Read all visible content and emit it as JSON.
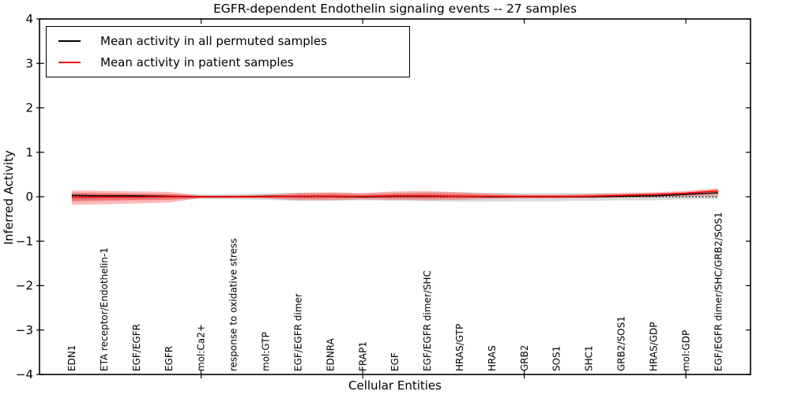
{
  "title": "EGFR-dependent Endothelin signaling events -- 27 samples",
  "legend": {
    "items": [
      {
        "label": "Mean activity in all permuted samples",
        "color": "#000000"
      },
      {
        "label": "Mean activity in patient samples",
        "color": "#ff0000"
      }
    ]
  },
  "colors": {
    "permuted_line": "#000000",
    "patient_line": "#ff0000",
    "patient_band": "#ff0000",
    "permuted_band": "#999999",
    "frame": "#000000",
    "background": "#ffffff"
  },
  "chart_data": {
    "type": "line",
    "title": "EGFR-dependent Endothelin signaling events -- 27 samples",
    "xlabel": "Cellular Entities",
    "ylabel": "Inferred Activity",
    "ylim": [
      -4,
      4
    ],
    "yticks": [
      -4,
      -3,
      -2,
      -1,
      0,
      1,
      2,
      3,
      4
    ],
    "xlim": [
      0,
      22
    ],
    "xticks": [
      5,
      10,
      15,
      20
    ],
    "x": [
      1,
      2,
      3,
      4,
      5,
      6,
      7,
      8,
      9,
      10,
      11,
      12,
      13,
      14,
      15,
      16,
      17,
      18,
      19,
      20,
      21
    ],
    "categories": [
      "EDN1",
      "ETA receptor/Endothelin-1",
      "EGF/EGFR",
      "EGFR",
      "mol:Ca2+",
      "response to oxidative stress",
      "mol:GTP",
      "EGF/EGFR dimer",
      "EDNRA",
      "FRAP1",
      "EGF",
      "EGF/EGFR dimer/SHC",
      "HRAS/GTP",
      "HRAS",
      "GRB2",
      "SOS1",
      "SHC1",
      "GRB2/SOS1",
      "HRAS/GDP",
      "mol:GDP",
      "EGF/EGFR dimer/SHC/GRB2/SOS1"
    ],
    "series": [
      {
        "name": "Mean activity in all permuted samples",
        "color": "#000000",
        "values": [
          0.03,
          0.02,
          0.02,
          0.01,
          0,
          0,
          0.01,
          0.01,
          0.01,
          0,
          0.01,
          0.01,
          0.01,
          0,
          0,
          0,
          0,
          0.01,
          0.02,
          0.05,
          0.09
        ]
      },
      {
        "name": "Mean activity in patient samples",
        "color": "#ff0000",
        "values": [
          -0.01,
          -0.01,
          -0.01,
          0,
          0,
          0,
          0,
          0.01,
          0.01,
          0.01,
          0.02,
          0.02,
          0.01,
          0.01,
          0,
          0,
          0.01,
          0.03,
          0.05,
          0.08,
          0.13
        ]
      }
    ],
    "bands": [
      {
        "name": "permuted-spread",
        "color": "#999999",
        "opacity": 0.35,
        "upper": [
          0.08,
          0.08,
          0.07,
          0.06,
          0.05,
          0.06,
          0.07,
          0.09,
          0.09,
          0.08,
          0.09,
          0.1,
          0.1,
          0.09,
          0.08,
          0.08,
          0.08,
          0.08,
          0.08,
          0.08,
          0.09
        ],
        "lower": [
          -0.08,
          -0.08,
          -0.07,
          -0.06,
          -0.05,
          -0.06,
          -0.07,
          -0.09,
          -0.09,
          -0.08,
          -0.09,
          -0.1,
          -0.11,
          -0.11,
          -0.1,
          -0.1,
          -0.09,
          -0.08,
          -0.08,
          -0.06,
          -0.05
        ]
      },
      {
        "name": "patient-spread-outer",
        "color": "#ff0000",
        "opacity": 0.28,
        "upper": [
          0.14,
          0.13,
          0.12,
          0.11,
          0.03,
          0.03,
          0.05,
          0.09,
          0.1,
          0.08,
          0.12,
          0.13,
          0.1,
          0.07,
          0.05,
          0.05,
          0.06,
          0.08,
          0.1,
          0.13,
          0.19
        ],
        "lower": [
          -0.18,
          -0.17,
          -0.15,
          -0.13,
          -0.03,
          -0.03,
          -0.04,
          -0.08,
          -0.08,
          -0.06,
          -0.07,
          -0.08,
          -0.07,
          -0.05,
          -0.04,
          -0.04,
          -0.03,
          -0.02,
          -0.01,
          0.01,
          0.02
        ]
      },
      {
        "name": "patient-spread-inner",
        "color": "#ff0000",
        "opacity": 0.28,
        "upper": [
          0.09,
          0.08,
          0.07,
          0.06,
          0.01,
          0.01,
          0.02,
          0.05,
          0.06,
          0.04,
          0.07,
          0.08,
          0.06,
          0.04,
          0.03,
          0.03,
          0.04,
          0.05,
          0.07,
          0.1,
          0.16
        ],
        "lower": [
          -0.11,
          -0.09,
          -0.08,
          -0.07,
          -0.02,
          -0.02,
          -0.02,
          -0.04,
          -0.04,
          -0.03,
          -0.03,
          -0.04,
          -0.03,
          -0.02,
          -0.02,
          -0.02,
          -0.01,
          0,
          0.01,
          0.04,
          0.07
        ]
      }
    ],
    "zero_line": {
      "y": 0,
      "style": "dotted",
      "color": "#000000"
    },
    "legend_position": "upper left",
    "grid": false
  }
}
